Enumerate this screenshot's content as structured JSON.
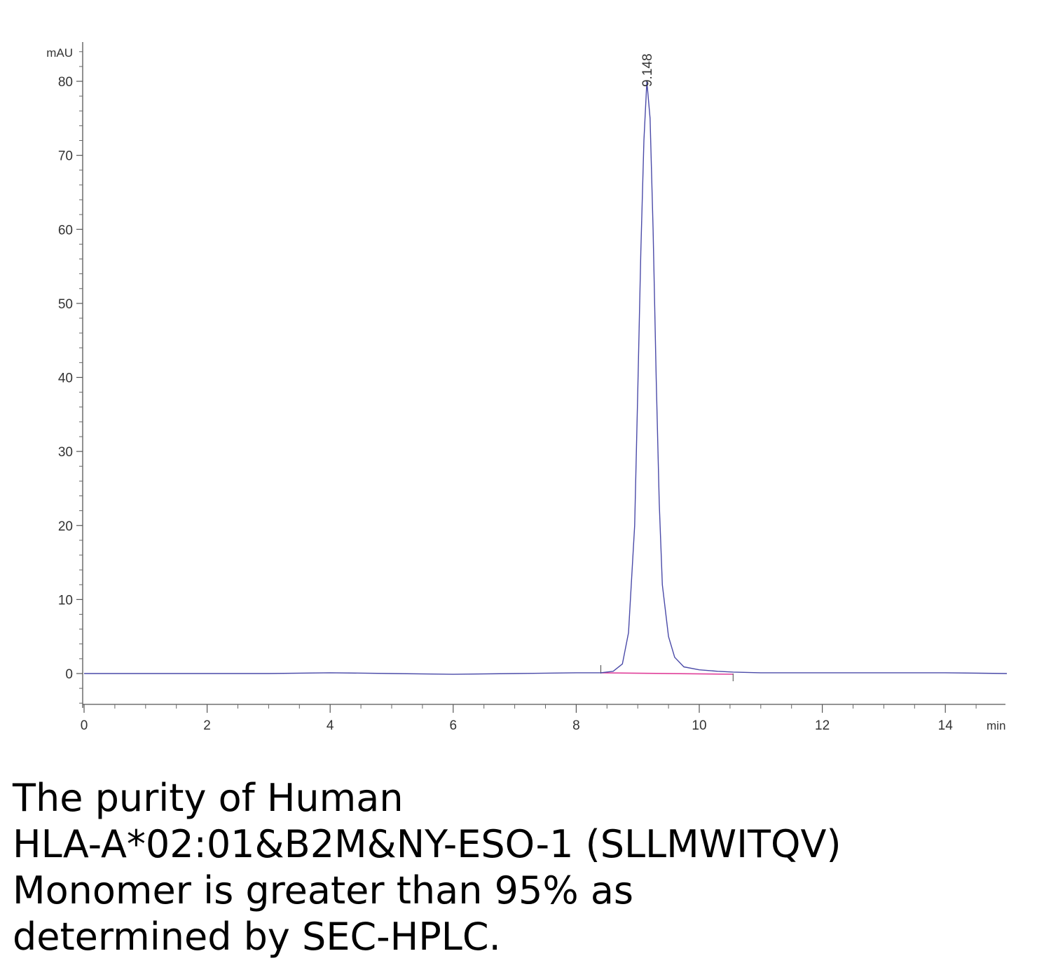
{
  "chart_data": {
    "type": "line",
    "y_unit_label": "mAU",
    "x_unit_label": "min",
    "xlim": [
      0,
      15
    ],
    "ylim": [
      -4,
      85
    ],
    "x_ticks": [
      0,
      2,
      4,
      6,
      8,
      10,
      12,
      14
    ],
    "y_ticks": [
      0,
      10,
      20,
      30,
      40,
      50,
      60,
      70,
      80
    ],
    "grid": false,
    "peak_annotation": {
      "label": "9.148",
      "x": 9.148
    },
    "integration_baseline": {
      "start": 8.4,
      "end": 10.55
    },
    "series": [
      {
        "color": "#4a4aa8",
        "x": [
          0,
          1,
          2,
          3,
          4,
          5,
          6,
          7,
          8,
          8.4,
          8.6,
          8.75,
          8.85,
          8.95,
          9.0,
          9.05,
          9.1,
          9.148,
          9.2,
          9.25,
          9.3,
          9.35,
          9.4,
          9.5,
          9.6,
          9.75,
          10.0,
          10.3,
          10.55,
          11,
          12,
          13,
          14,
          15
        ],
        "y": [
          0,
          0,
          0,
          0,
          0.1,
          0,
          -0.1,
          0,
          0.1,
          0.1,
          0.3,
          1.3,
          5.5,
          20,
          38,
          57,
          72,
          80,
          75,
          60,
          40,
          23,
          12,
          5,
          2.2,
          0.9,
          0.5,
          0.3,
          0.2,
          0.1,
          0.1,
          0.1,
          0.1,
          0
        ]
      }
    ]
  },
  "caption": {
    "line1": "The purity of Human",
    "line2": "HLA-A*02:01&B2M&NY-ESO-1 (SLLMWITQV)",
    "line3": "Monomer is greater than 95% as",
    "line4": "determined by SEC-HPLC."
  }
}
